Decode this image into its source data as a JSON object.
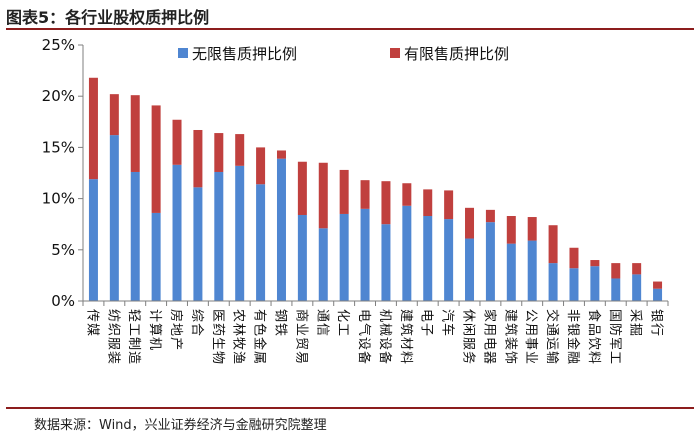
{
  "figure": {
    "title": "图表5：各行业股权质押比例",
    "source": "数据来源：Wind，兴业证券经济与金融研究院整理"
  },
  "colors": {
    "unrestricted": "#4f86d1",
    "restricted": "#c0403e",
    "axis": "#7f7f7f"
  },
  "chart_data": {
    "type": "bar",
    "stacked": true,
    "title": "",
    "xlabel": "",
    "ylabel": "",
    "ylim": [
      0,
      25
    ],
    "yticks": [
      "0%",
      "5%",
      "10%",
      "15%",
      "20%",
      "25%"
    ],
    "legend_position": "top",
    "grid": false,
    "categories": [
      "传媒",
      "纺织服装",
      "轻工制造",
      "计算机",
      "房地产",
      "综合",
      "医药生物",
      "农林牧渔",
      "有色金属",
      "钢铁",
      "商业贸易",
      "通信",
      "化工",
      "电气设备",
      "机械设备",
      "建筑材料",
      "电子",
      "汽车",
      "休闲服务",
      "家用电器",
      "建筑装饰",
      "公用事业",
      "交通运输",
      "非银金融",
      "食品饮料",
      "国防军工",
      "采掘",
      "银行"
    ],
    "series": [
      {
        "name": "无限售质押比例",
        "values": [
          11.9,
          16.2,
          12.6,
          8.6,
          13.3,
          11.1,
          12.6,
          13.2,
          11.4,
          13.9,
          8.4,
          7.1,
          8.5,
          9.0,
          7.5,
          9.3,
          8.3,
          8.0,
          6.1,
          7.7,
          5.6,
          5.9,
          3.7,
          3.2,
          3.4,
          2.2,
          2.6,
          1.2
        ]
      },
      {
        "name": "有限售质押比例",
        "values": [
          9.9,
          4.0,
          7.5,
          10.5,
          4.4,
          5.6,
          3.8,
          3.1,
          3.6,
          0.8,
          5.2,
          6.4,
          4.3,
          2.8,
          4.2,
          2.2,
          2.6,
          2.8,
          3.0,
          1.2,
          2.7,
          2.3,
          3.7,
          2.0,
          0.6,
          1.5,
          1.1,
          0.7
        ]
      }
    ]
  }
}
